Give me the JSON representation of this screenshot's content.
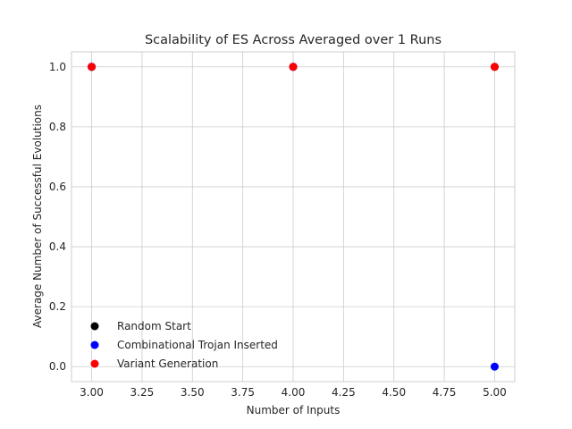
{
  "chart_data": {
    "type": "scatter",
    "title": "Scalability of ES Across Averaged over 1 Runs",
    "xlabel": "Number of Inputs",
    "ylabel": "Average Number of Successful Evolutions",
    "xlim": [
      2.9,
      5.1
    ],
    "ylim": [
      -0.05,
      1.05
    ],
    "xticks": [
      3.0,
      3.25,
      3.5,
      3.75,
      4.0,
      4.25,
      4.5,
      4.75,
      5.0
    ],
    "xtick_labels": [
      "3.00",
      "3.25",
      "3.50",
      "3.75",
      "4.00",
      "4.25",
      "4.50",
      "4.75",
      "5.00"
    ],
    "yticks": [
      0.0,
      0.2,
      0.4,
      0.6,
      0.8,
      1.0
    ],
    "ytick_labels": [
      "0.0",
      "0.2",
      "0.4",
      "0.6",
      "0.8",
      "1.0"
    ],
    "grid": true,
    "legend_position": "lower-left",
    "series": [
      {
        "name": "Random Start",
        "color": "#000000",
        "x": [
          3,
          4,
          5
        ],
        "y": [
          1.0,
          1.0,
          1.0
        ]
      },
      {
        "name": "Combinational Trojan Inserted",
        "color": "#0000ff",
        "x": [
          3,
          4,
          5
        ],
        "y": [
          1.0,
          1.0,
          0.0
        ]
      },
      {
        "name": "Variant Generation",
        "color": "#ff0000",
        "x": [
          3,
          4,
          5
        ],
        "y": [
          1.0,
          1.0,
          1.0
        ]
      }
    ]
  }
}
